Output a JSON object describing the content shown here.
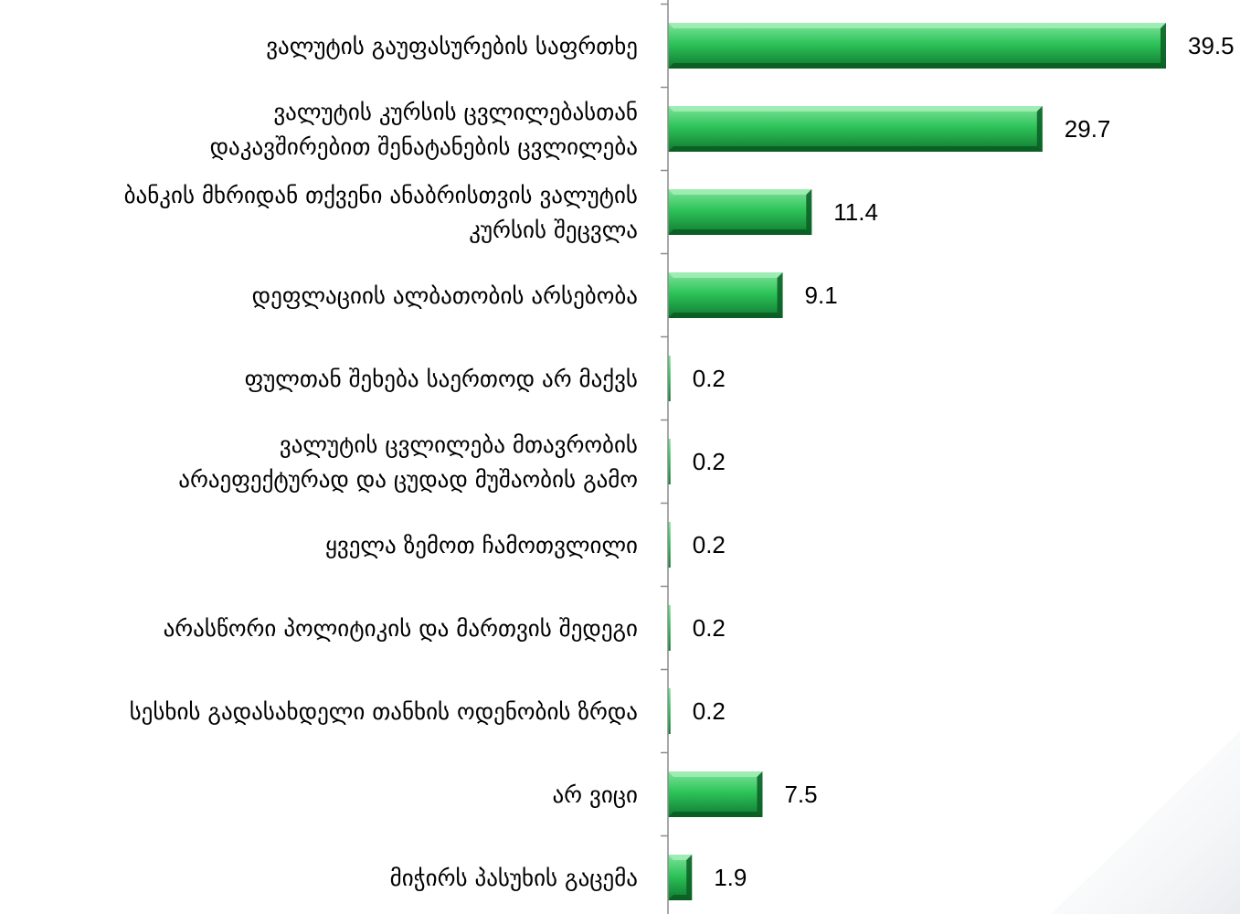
{
  "chart_data": {
    "type": "bar",
    "orientation": "horizontal",
    "categories": [
      [
        "ვალუტის გაუფასურების საფრთხე"
      ],
      [
        "ვალუტის კურსის ცვლილებასთან",
        "დაკავშირებით შენატანების ცვლილება"
      ],
      [
        "ბანკის მხრიდან თქვენი ანაბრისთვის ვალუტის",
        "კურსის შეცვლა"
      ],
      [
        "დეფლაციის ალბათობის არსებობა"
      ],
      [
        "ფულთან შეხება საერთოდ არ მაქვს"
      ],
      [
        "ვალუტის ცვლილება მთავრობის",
        "არაეფექტურად და ცუდად მუშაობის გამო"
      ],
      [
        "ყველა ზემოთ ჩამოთვლილი"
      ],
      [
        "არასწორი პოლიტიკის და მართვის შედეგი"
      ],
      [
        "სესხის გადასახდელი თანხის ოდენობის ზრდა"
      ],
      [
        "არ ვიცი"
      ],
      [
        "მიჭირს პასუხის გაცემა"
      ]
    ],
    "values": [
      39.5,
      29.7,
      11.4,
      9.1,
      0.2,
      0.2,
      0.2,
      0.2,
      0.2,
      7.5,
      1.9
    ],
    "value_labels": [
      "39.5",
      "29.7",
      "11.4",
      "9.1",
      "0.2",
      "0.2",
      "0.2",
      "0.2",
      "0.2",
      "7.5",
      "1.9"
    ],
    "xlim": [
      0,
      45
    ],
    "grid": false,
    "legend": "none",
    "bar_color": "#22b04a",
    "bar_color_dark": "#0e6b2a",
    "bar_color_light": "#7fe39a"
  }
}
